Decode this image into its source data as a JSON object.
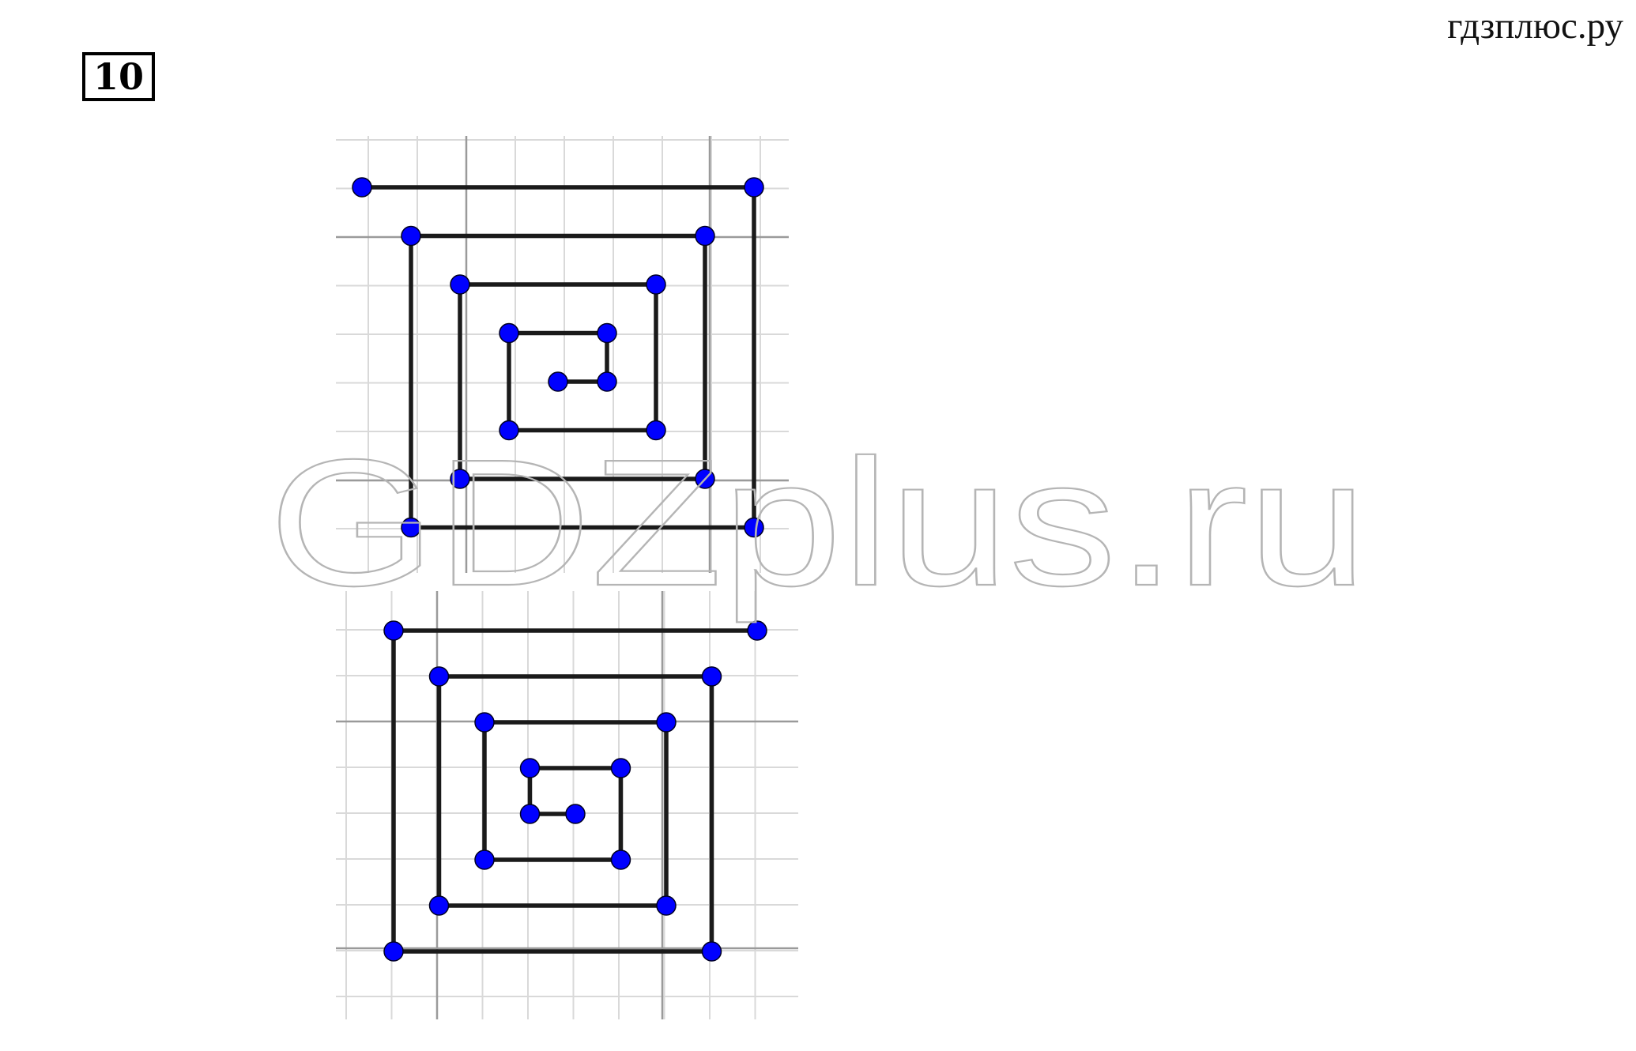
{
  "header": {
    "site_label": "гдзплюс.ру",
    "task_number": "10"
  },
  "watermark": {
    "text": "GDZplus.ru"
  },
  "colors": {
    "point": "#0000ff",
    "line": "#1a1a1a",
    "grid_light": "#d9d9d9",
    "grid_dark": "#9a9a9a",
    "watermark_stroke": "#b5b5b5"
  },
  "figures": [
    {
      "id": "spiral-top",
      "points": [
        [
          0,
          0
        ],
        [
          8,
          0
        ],
        [
          8,
          7
        ],
        [
          1,
          7
        ],
        [
          1,
          1
        ],
        [
          7,
          1
        ],
        [
          7,
          6
        ],
        [
          2,
          6
        ],
        [
          2,
          2
        ],
        [
          6,
          2
        ],
        [
          6,
          5
        ],
        [
          3,
          5
        ],
        [
          3,
          3
        ],
        [
          5,
          3
        ],
        [
          5,
          4
        ],
        [
          4,
          4
        ]
      ]
    },
    {
      "id": "spiral-bottom",
      "points": [
        [
          8,
          0
        ],
        [
          0,
          0
        ],
        [
          0,
          7
        ],
        [
          7,
          7
        ],
        [
          7,
          1
        ],
        [
          1,
          1
        ],
        [
          1,
          6
        ],
        [
          6,
          6
        ],
        [
          6,
          2
        ],
        [
          2,
          2
        ],
        [
          2,
          5
        ],
        [
          5,
          5
        ],
        [
          5,
          3
        ],
        [
          3,
          3
        ],
        [
          3,
          4
        ],
        [
          4,
          4
        ]
      ]
    }
  ]
}
